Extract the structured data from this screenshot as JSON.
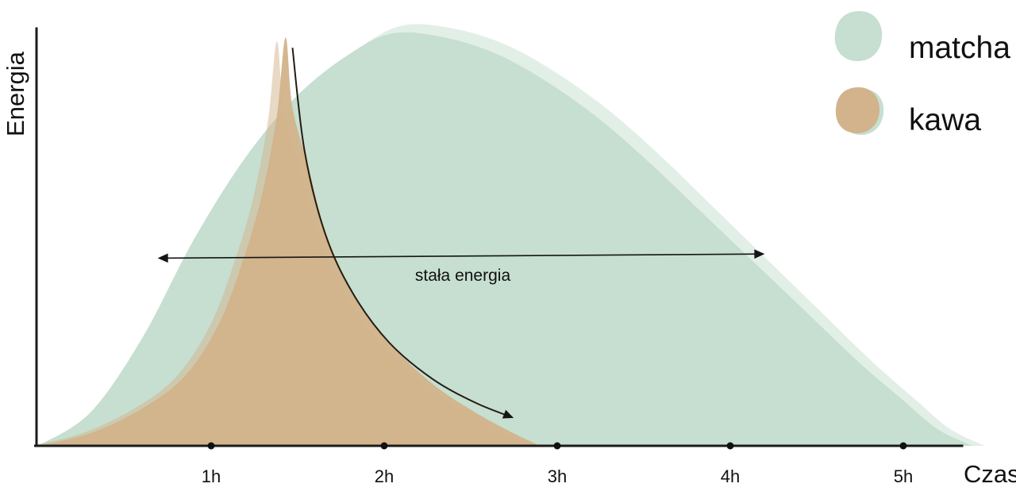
{
  "chart": {
    "ylabel": "Energia",
    "xlabel": "Czas",
    "legend": [
      {
        "label": "matcha",
        "color": "#c6dfd0"
      },
      {
        "label": "kawa",
        "color": "#d2b38b"
      }
    ]
  },
  "chart_data": {
    "type": "area",
    "title": "",
    "xlabel": "Czas",
    "ylabel": "Energia",
    "x_unit": "hours",
    "xlim": [
      0,
      5.6
    ],
    "ylim": [
      0,
      105
    ],
    "grid": false,
    "legend_position": "top-right",
    "x_ticks": [
      "1h",
      "2h",
      "3h",
      "4h",
      "5h"
    ],
    "x_tick_values": [
      1,
      2,
      3,
      4,
      5
    ],
    "series": [
      {
        "name": "matcha",
        "color": "#c6dfd0",
        "x": [
          0,
          0.3,
          0.6,
          0.9,
          1.2,
          1.5,
          1.8,
          2.05,
          2.35,
          2.65,
          2.95,
          3.25,
          3.55,
          3.85,
          4.15,
          4.45,
          4.75,
          5.0,
          5.2,
          5.4
        ],
        "y": [
          0,
          8,
          26,
          50,
          70,
          85,
          95,
          100,
          99,
          95,
          88,
          79,
          68,
          56,
          44,
          32,
          20,
          11,
          4,
          0
        ]
      },
      {
        "name": "kawa",
        "color": "#d2b38b",
        "x": [
          0,
          0.3,
          0.6,
          0.85,
          1.05,
          1.2,
          1.3,
          1.38,
          1.43,
          1.47,
          1.56,
          1.66,
          1.82,
          2.03,
          2.28,
          2.53,
          2.75,
          2.9
        ],
        "y": [
          0,
          3,
          9,
          17,
          30,
          47,
          62,
          80,
          99,
          82,
          68,
          52,
          37,
          25,
          15,
          8,
          3,
          0
        ]
      }
    ],
    "annotations": [
      {
        "type": "double_arrow",
        "label": "stała energia",
        "x_start": 0.7,
        "x_end": 4.19,
        "y_start": 45.5,
        "y_end": 46.5
      },
      {
        "type": "curved_arrow",
        "label": "",
        "points_x": [
          1.47,
          1.54,
          1.66,
          1.82,
          2.03,
          2.28,
          2.53,
          2.74
        ],
        "points_y": [
          96.5,
          71.5,
          51.3,
          36.9,
          25,
          16.2,
          10.4,
          6.9
        ]
      }
    ]
  }
}
